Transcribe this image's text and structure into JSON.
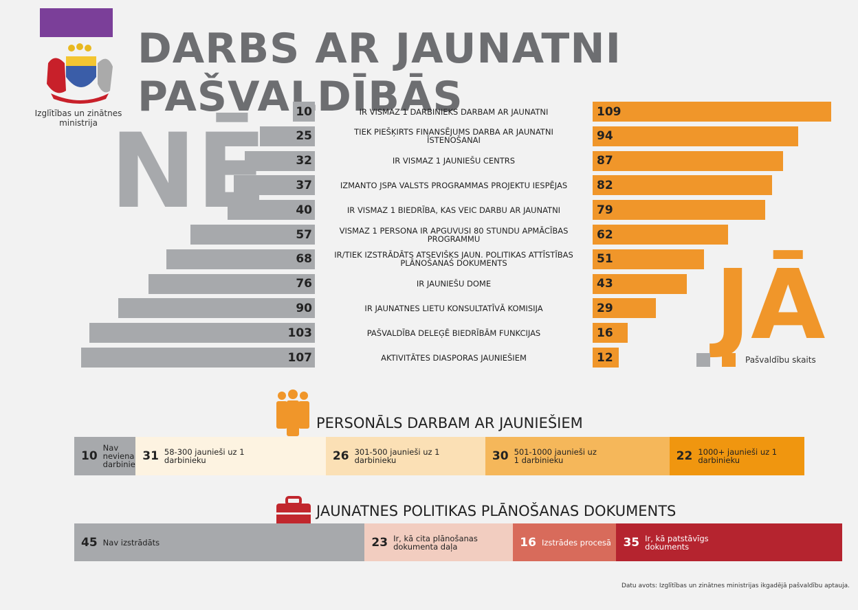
{
  "header": {
    "title": "DARBS AR JAUNATNI PAŠVALDĪBĀS",
    "logo_text": [
      "Izglītības un zinātnes",
      "ministrija"
    ]
  },
  "chart_data": [
    {
      "type": "butterfly",
      "categories": [
        "IR VISMAZ 1 DARBINIEKS DARBAM AR JAUNATNI",
        "TIEK PIEŠĶIRTS FINANSĒJUMS DARBA AR JAUNATNI ĪSTENOŠANAI",
        "IR VISMAZ 1 JAUNIEŠU CENTRS",
        "IZMANTO JSPA VALSTS PROGRAMMAS PROJEKTU IESPĒJAS",
        "IR VISMAZ 1 BIEDRĪBA, KAS VEIC DARBU AR JAUNATNI",
        "VISMAZ 1 PERSONA IR APGUVUSI 80 STUNDU APMĀCĪBAS PROGRAMMU",
        "IR/TIEK IZSTRĀDĀTS ATSEVIŠĶS JAUN. POLITIKAS ATTĪSTĪBAS PLĀNOŠANAS DOKUMENTS",
        "IR JAUNIEŠU DOME",
        "IR JAUNATNES LIETU KONSULTATĪVĀ KOMISIJA",
        "PAŠVALDĪBA DELEĢĒ BIEDRĪBĀM FUNKCIJAS",
        "AKTIVITĀTES DIASPORAS JAUNIEŠIEM"
      ],
      "series": [
        {
          "name": "NĒ",
          "color": "#a7a9ac",
          "values": [
            10,
            25,
            32,
            37,
            40,
            57,
            68,
            76,
            90,
            103,
            107
          ]
        },
        {
          "name": "JĀ",
          "color": "#f0962a",
          "values": [
            109,
            94,
            87,
            82,
            79,
            62,
            51,
            43,
            29,
            16,
            12
          ]
        }
      ],
      "legend_label": "Pašvaldību skaits",
      "xlim": [
        0,
        110
      ]
    },
    {
      "type": "stacked_bar",
      "title": "PERSONĀLS DARBAM AR JAUNIEŠIEM",
      "categories": [
        "Nav neviena darbinieka",
        "58-300 jaunieši uz 1 darbinieku",
        "301-500 jaunieši uz 1 darbinieku",
        "501-1000 jaunieši uz 1 darbinieku",
        "1000+ jaunieši uz 1 darbinieku"
      ],
      "values": [
        10,
        31,
        26,
        30,
        22
      ],
      "colors": [
        "#a7a9ac",
        "#fdf3e1",
        "#fbe0b5",
        "#f5b75a",
        "#f0960f"
      ]
    },
    {
      "type": "stacked_bar",
      "title": "JAUNATNES POLITIKAS PLĀNOŠANAS DOKUMENTS",
      "categories": [
        "Nav izstrādāts",
        "Ir, kā cita plānošanas dokumenta daļa",
        "Izstrādes procesā",
        "Ir, kā patstāvīgs dokuments"
      ],
      "values": [
        45,
        23,
        16,
        35
      ],
      "colors": [
        "#a7a9ac",
        "#f2cdc0",
        "#d86b5b",
        "#b5242f"
      ]
    }
  ],
  "footer": {
    "source": "Datu avots: Izglītības un zinātnes ministrijas ikgadējā pašvaldību aptauja."
  }
}
